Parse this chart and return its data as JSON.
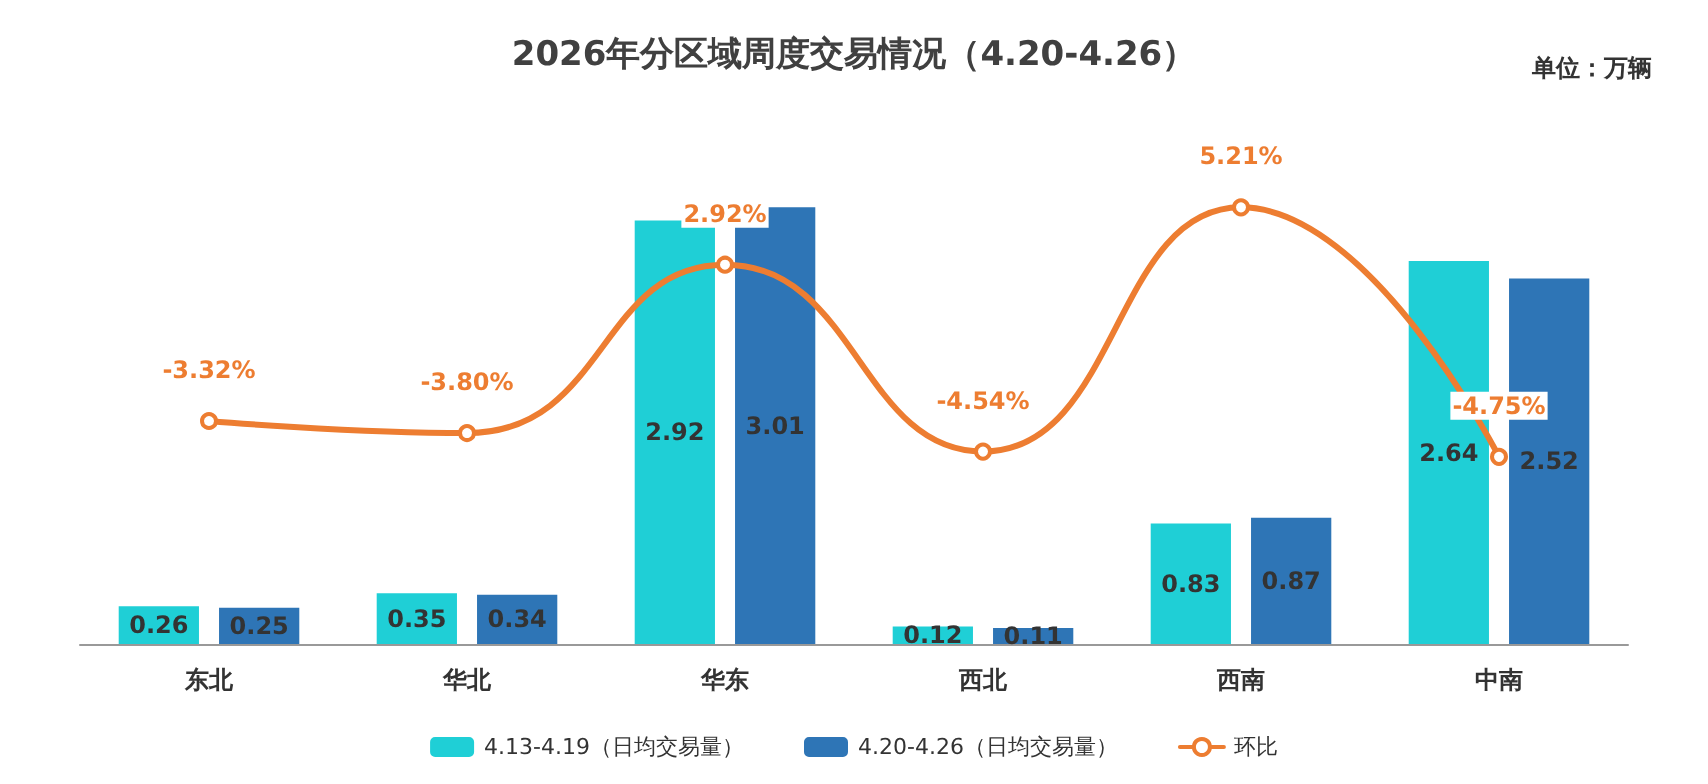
{
  "chart_data": {
    "type": "bar",
    "title": "2026年分区域周度交易情况（4.20-4.26）",
    "annotations": [
      "单位：万辆"
    ],
    "categories": [
      "东北",
      "华北",
      "华东",
      "西北",
      "西南",
      "中南"
    ],
    "series": [
      {
        "name": "4.13-4.19（日均交易量）",
        "color": "#1fcfd6",
        "values": [
          0.26,
          0.35,
          2.92,
          0.12,
          0.83,
          2.64
        ]
      },
      {
        "name": "4.20-4.26（日均交易量）",
        "color": "#2e75b6",
        "values": [
          0.25,
          0.34,
          3.01,
          0.11,
          0.87,
          2.52
        ]
      },
      {
        "name": "环比",
        "type": "line",
        "axis": "y2",
        "color": "#ed7d31",
        "values": [
          -3.32,
          -3.8,
          2.92,
          -4.54,
          5.21,
          -4.75
        ],
        "value_labels": [
          "-3.32%",
          "-3.80%",
          "2.92%",
          "-4.54%",
          "5.21%",
          "-4.75%"
        ]
      }
    ],
    "data_labels": true,
    "grid": false,
    "legend": "bottom",
    "marker": "circle",
    "line_style": "solid"
  }
}
